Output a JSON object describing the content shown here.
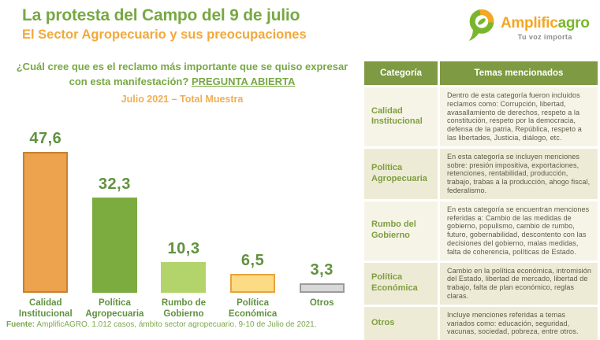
{
  "header": {
    "title": "La protesta del Campo del 9 de julio",
    "subtitle": "El Sector Agropecuario y sus preocupaciones"
  },
  "logo": {
    "brand_part1": "Amplific",
    "brand_part2": "agro",
    "tagline": "Tu voz importa",
    "orange": "#F5A623",
    "green": "#7AB62C"
  },
  "question": {
    "line1": "¿Cuál cree que es el reclamo más importante que se quiso expresar",
    "line2_prefix": "con esta manifestación? ",
    "line2_underlined": "PREGUNTA ABIERTA",
    "period_label": "Julio 2021 – Total Muestra"
  },
  "chart_data": {
    "type": "bar",
    "title": "¿Cuál cree que es el reclamo más importante que se quiso expresar con esta manifestación? PREGUNTA ABIERTA",
    "subtitle": "Julio 2021 – Total Muestra",
    "categories": [
      "Calidad Institucional",
      "Política Agropecuaria",
      "Rumbo de Gobierno",
      "Política Económica",
      "Otros"
    ],
    "values": [
      47.6,
      32.3,
      10.3,
      6.5,
      3.3
    ],
    "value_labels": [
      "47,6",
      "32,3",
      "10,3",
      "6,5",
      "3,3"
    ],
    "category_label_lines": [
      "Calidad\nInstitucional",
      "Política\nAgropecuaria",
      "Rumbo de\nGobierno",
      "Política\nEconómica",
      "Otros"
    ],
    "bar_fills": [
      "#EDA24E",
      "#7CAB40",
      "#B3D46B",
      "#FBDB83",
      "#D8D8D8"
    ],
    "bar_borders": [
      "#C8812F",
      "#7CAB40",
      "#B3D46B",
      "#E8A33D",
      "#9B9B9B"
    ],
    "xlabel": "",
    "ylabel": "",
    "ylim": [
      0,
      50
    ],
    "grid": false,
    "legend": "none",
    "data_labels": "above bars"
  },
  "table": {
    "headers": [
      "Categoría",
      "Temas mencionados"
    ],
    "header_bg": "#7E9A42",
    "rows": [
      {
        "category": "Calidad Institucional",
        "description": "Dentro de esta categoría fueron incluidos reclamos como: Corrupción, libertad, avasallamiento de derechos, respeto a la constitución, respeto por la democracia, defensa de la patria, República, respeto a las libertades, Justicia, diálogo, etc."
      },
      {
        "category": "Política Agropecuaria",
        "description": "En esta categoría se incluyen menciones sobre: presión impositiva, exportaciones, retenciones, rentabilidad, producción, trabajo, trabas a la producción, ahogo fiscal, federalismo."
      },
      {
        "category": "Rumbo del Gobierno",
        "description": "En esta categoría se encuentran menciones referidas a: Cambio de las medidas de gobierno, populismo, cambio de rumbo, futuro, gobernabilidad, descontento con las decisiones del gobierno, malas medidas, falta de coherencia, políticas de Estado."
      },
      {
        "category": "Política Económica",
        "description": "Cambio en la política económica, intromisión del Estado, libertad de mercado, libertad de trabajo, falta de plan económico, reglas claras."
      },
      {
        "category": "Otros",
        "description": "Incluye menciones referidas a temas variados como: educación, seguridad, vacunas, sociedad, pobreza, entre otros."
      }
    ]
  },
  "footer": {
    "source_label": "Fuente:",
    "source_text": " AmplificAGRO. 1.012 casos, ámbito sector agropecuario. 9-10 de Julio de 2021."
  },
  "colors": {
    "title_green": "#78A844",
    "subtitle_orange": "#F2A93B",
    "value_label_green": "#61923F",
    "table_header_bg": "#7E9A42",
    "row_light": "#F6F4E7",
    "row_dark": "#EDEBD6",
    "category_text": "#7F9E3F",
    "description_text": "#5B5A46"
  }
}
